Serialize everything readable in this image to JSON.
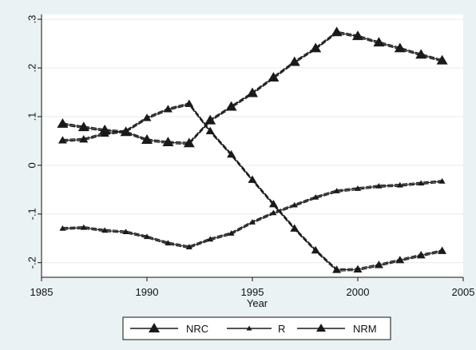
{
  "chart_data": {
    "type": "line",
    "title": "",
    "xlabel": "Year",
    "ylabel": "",
    "xlim": [
      1985,
      2005
    ],
    "ylim": [
      -0.23,
      0.31
    ],
    "xticks": [
      1985,
      1990,
      1995,
      2000,
      2005
    ],
    "xtick_labels": [
      "1985",
      "1990",
      "1995",
      "2000",
      "2005"
    ],
    "yticks": [
      -0.2,
      -0.1,
      0,
      0.1,
      0.2,
      0.3
    ],
    "ytick_labels": [
      "-.2",
      "-.1",
      "0",
      ".1",
      ".2",
      ".3"
    ],
    "grid": "horizontal",
    "legend_position": "bottom",
    "series": [
      {
        "name": "NRC",
        "marker": "large-triangle",
        "x": [
          1986,
          1987,
          1988,
          1989,
          1990,
          1991,
          1992,
          1993,
          1994,
          1995,
          1996,
          1997,
          1998,
          1999,
          2000,
          2001,
          2002,
          2003,
          2004
        ],
        "y": [
          0.085,
          0.078,
          0.072,
          0.068,
          0.052,
          0.047,
          0.045,
          0.092,
          0.12,
          0.148,
          0.18,
          0.212,
          0.24,
          0.273,
          0.265,
          0.252,
          0.24,
          0.227,
          0.215
        ]
      },
      {
        "name": "R",
        "marker": "small-triangle",
        "x": [
          1986,
          1987,
          1988,
          1989,
          1990,
          1991,
          1992,
          1993,
          1994,
          1995,
          1996,
          1997,
          1998,
          1999,
          2000,
          2001,
          2002,
          2003,
          2004
        ],
        "y": [
          -0.13,
          -0.128,
          -0.134,
          -0.137,
          -0.147,
          -0.16,
          -0.168,
          -0.152,
          -0.14,
          -0.117,
          -0.098,
          -0.082,
          -0.066,
          -0.053,
          -0.048,
          -0.043,
          -0.041,
          -0.037,
          -0.033
        ]
      },
      {
        "name": "NRM",
        "marker": "medium-triangle",
        "x": [
          1986,
          1987,
          1988,
          1989,
          1990,
          1991,
          1992,
          1993,
          1994,
          1995,
          1996,
          1997,
          1998,
          1999,
          2000,
          2001,
          2002,
          2003,
          2004
        ],
        "y": [
          0.051,
          0.053,
          0.065,
          0.07,
          0.097,
          0.115,
          0.126,
          0.07,
          0.022,
          -0.03,
          -0.08,
          -0.13,
          -0.175,
          -0.215,
          -0.214,
          -0.205,
          -0.195,
          -0.185,
          -0.176
        ]
      }
    ]
  },
  "colors": {
    "outer_background": "#eaf2f3",
    "plot_background": "#ffffff",
    "grid": "#e3ecee",
    "line": "#1a1a1a"
  }
}
